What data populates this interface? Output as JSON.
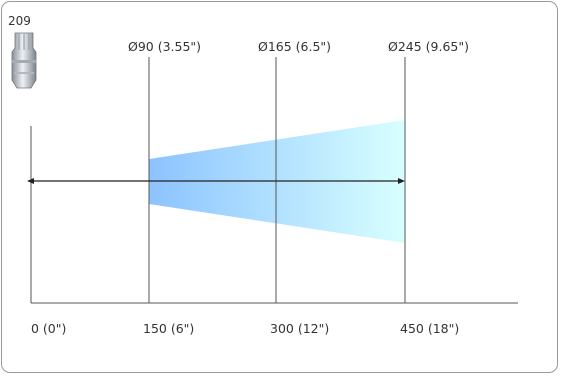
{
  "model": "209",
  "nozzle_icon": "spray-nozzle-icon",
  "spray": {
    "gradient_start": "#8cc3ff",
    "gradient_end": "#d8ffff",
    "diameters": [
      {
        "label": "Ø90 (3.55\")"
      },
      {
        "label": "Ø165 (6.5\")"
      },
      {
        "label": "Ø245 (9.65\")"
      }
    ]
  },
  "distance_axis": {
    "ticks": [
      {
        "label": "0 (0\")"
      },
      {
        "label": "150 (6\")"
      },
      {
        "label": "300 (12\")"
      },
      {
        "label": "450 (18\")"
      }
    ]
  }
}
